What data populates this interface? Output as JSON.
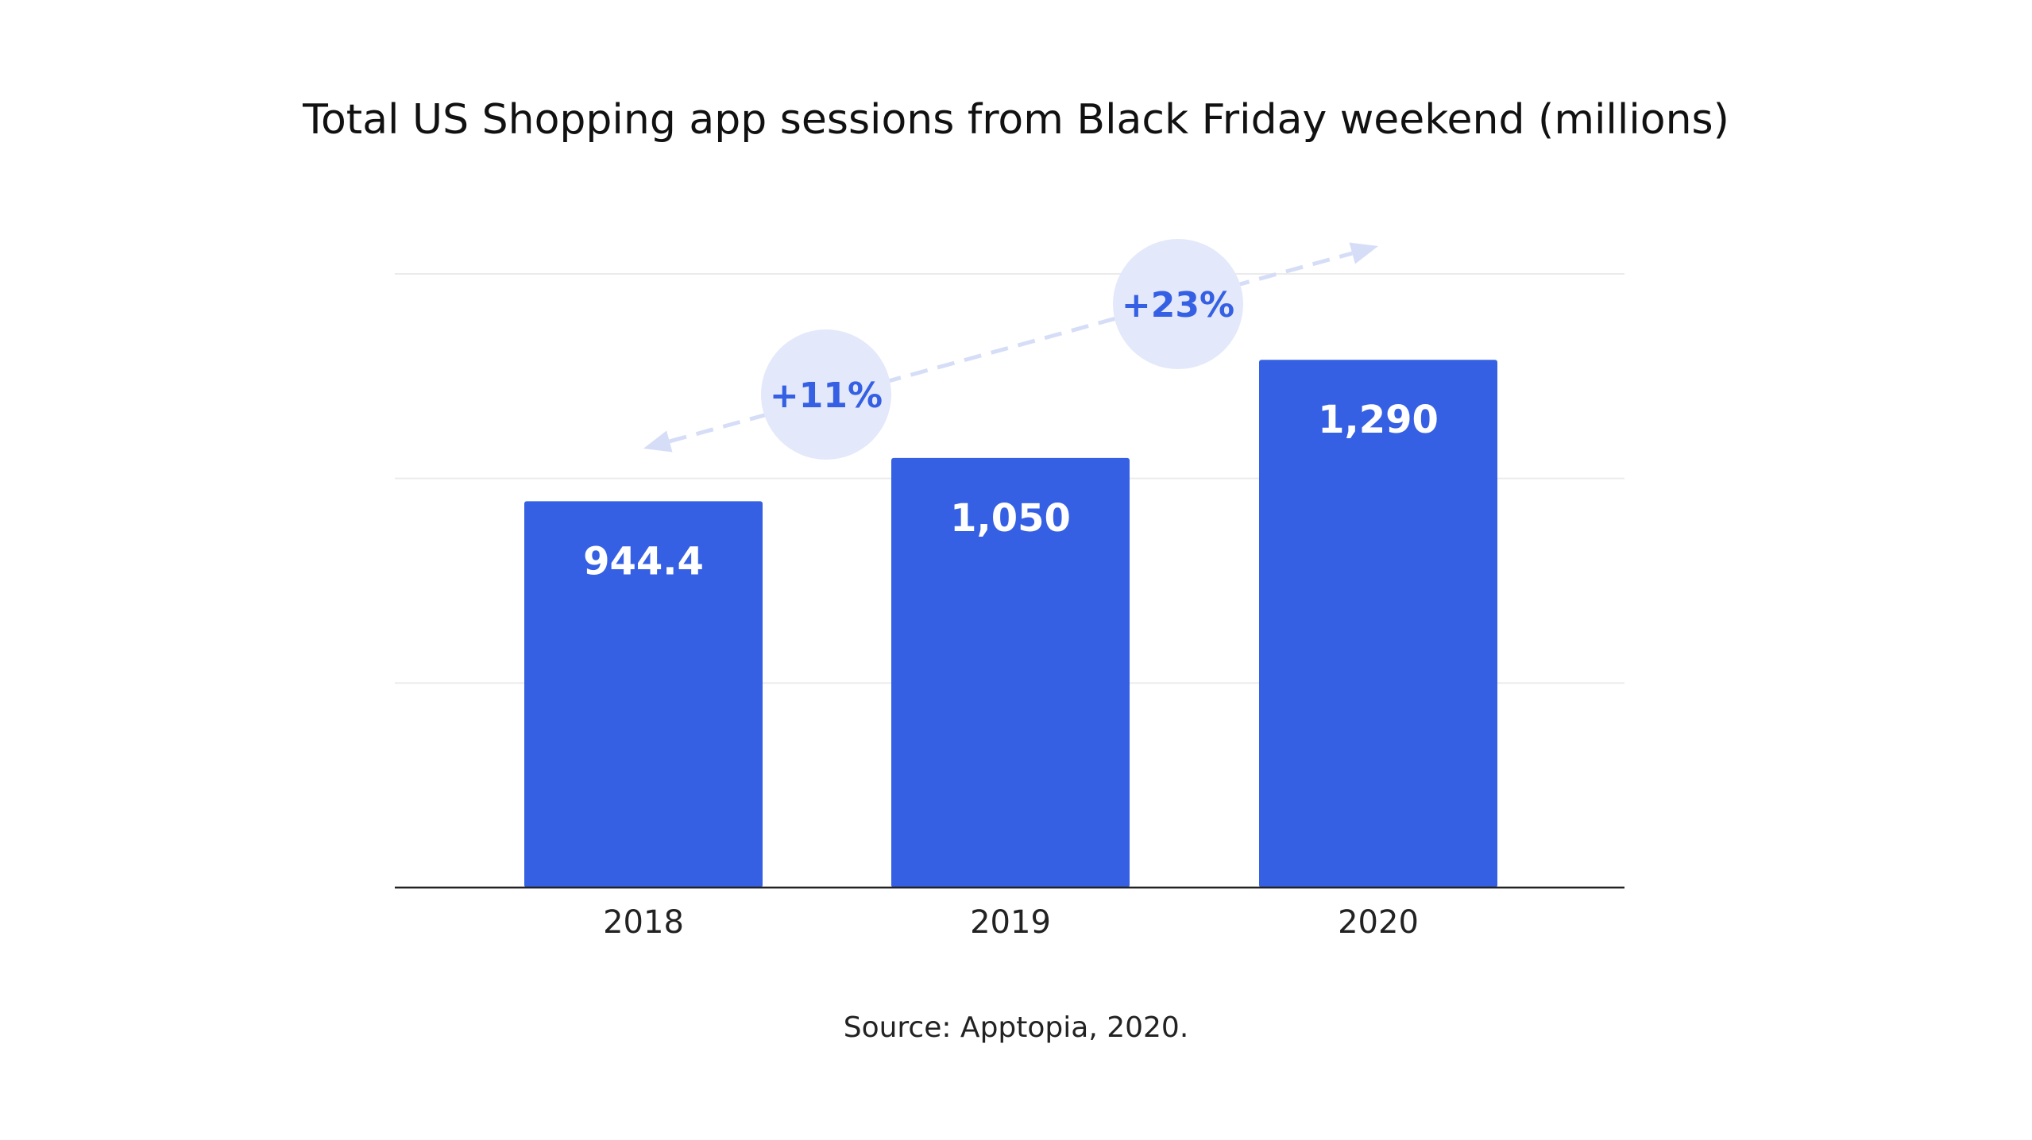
{
  "chart_data": {
    "type": "bar",
    "title": "Total US Shopping app sessions from Black Friday weekend (millions)",
    "categories": [
      "2018",
      "2019",
      "2020"
    ],
    "values": [
      944.4,
      1050,
      1290
    ],
    "data_labels": [
      "944.4",
      "1,050",
      "1,290"
    ],
    "ylim": [
      0,
      1500
    ],
    "grid": true,
    "xlabel": "",
    "ylabel": "",
    "annotations": [
      {
        "label": "+11%",
        "from": "2018",
        "to": "2019"
      },
      {
        "label": "+23%",
        "from": "2019",
        "to": "2020"
      }
    ],
    "source": "Source: Apptopia, 2020."
  },
  "colors": {
    "bar": "#3660E3",
    "gridline": "#EBEBEB",
    "axis": "#222222",
    "bubble": "#E3E8FA",
    "bubble_text": "#3660E3",
    "arrow": "#D6DDF7"
  }
}
